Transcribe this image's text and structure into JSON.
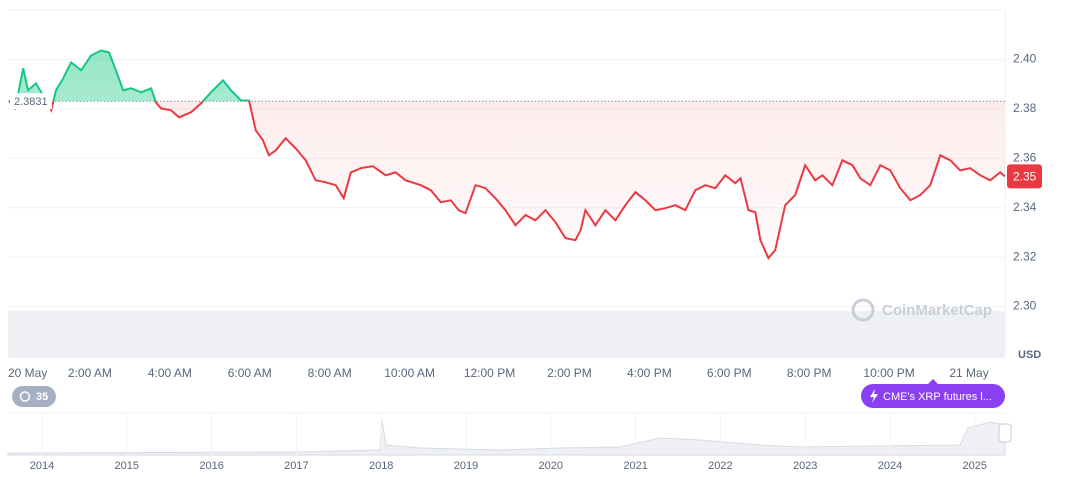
{
  "chart_data": {
    "type": "line",
    "x": [
      -0.03,
      0.13,
      0.33,
      0.45,
      0.65,
      0.78,
      1.03,
      1.15,
      1.33,
      1.53,
      1.78,
      2.03,
      2.28,
      2.48,
      2.65,
      2.83,
      3.03,
      3.28,
      3.53,
      3.65,
      3.78,
      4.03,
      4.23,
      4.53,
      4.78,
      5.03,
      5.33,
      5.53,
      5.78,
      5.98,
      6.15,
      6.33,
      6.48,
      6.65,
      6.9,
      7.15,
      7.4,
      7.65,
      7.9,
      8.15,
      8.35,
      8.53,
      8.78,
      9.08,
      9.4,
      9.65,
      9.9,
      10.28,
      10.53,
      10.78,
      11.03,
      11.23,
      11.4,
      11.65,
      11.9,
      12.15,
      12.4,
      12.65,
      12.9,
      13.15,
      13.4,
      13.65,
      13.9,
      14.15,
      14.28,
      14.4,
      14.65,
      14.9,
      15.15,
      15.4,
      15.65,
      15.9,
      16.15,
      16.4,
      16.65,
      16.9,
      17.15,
      17.4,
      17.65,
      17.9,
      18.15,
      18.28,
      18.48,
      18.65,
      18.78,
      18.98,
      19.15,
      19.4,
      19.65,
      19.9,
      20.15,
      20.33,
      20.58,
      20.83,
      21.08,
      21.28,
      21.53,
      21.78,
      22.03,
      22.28,
      22.53,
      22.78,
      23.03,
      23.28,
      23.53,
      23.78,
      24.03,
      24.28,
      24.53,
      24.78,
      24.9
    ],
    "values": [
      2.3834,
      2.3802,
      2.3964,
      2.3875,
      2.3903,
      2.3867,
      2.3794,
      2.3875,
      2.3923,
      2.3988,
      2.3956,
      2.4016,
      2.4036,
      2.4028,
      2.3956,
      2.3875,
      2.3883,
      2.3867,
      2.3883,
      2.3826,
      2.3802,
      2.3794,
      2.3766,
      2.3786,
      2.3822,
      2.3867,
      2.3915,
      2.3875,
      2.3834,
      2.3834,
      2.3713,
      2.3673,
      2.3612,
      2.3632,
      2.3681,
      2.364,
      2.3592,
      2.3511,
      2.3503,
      2.3491,
      2.3438,
      2.3543,
      2.356,
      2.3568,
      2.3531,
      2.3543,
      2.3511,
      2.3491,
      2.3471,
      2.3422,
      2.343,
      2.339,
      2.3378,
      2.3491,
      2.3479,
      2.3438,
      2.339,
      2.3329,
      2.337,
      2.3349,
      2.339,
      2.3341,
      2.3277,
      2.3269,
      2.3309,
      2.339,
      2.3329,
      2.339,
      2.3349,
      2.341,
      2.3463,
      2.343,
      2.339,
      2.3398,
      2.341,
      2.339,
      2.3471,
      2.3491,
      2.3479,
      2.3531,
      2.3499,
      2.3519,
      2.339,
      2.3382,
      2.3269,
      2.3196,
      2.3228,
      2.341,
      2.3451,
      2.3572,
      2.3511,
      2.3531,
      2.3491,
      2.3592,
      2.3572,
      2.3519,
      2.3491,
      2.3572,
      2.3551,
      2.3479,
      2.343,
      2.3451,
      2.3491,
      2.3612,
      2.3592,
      2.3551,
      2.356,
      2.3531,
      2.3511,
      2.3543,
      2.3527
    ],
    "color_up": "#16c784",
    "color_down": "#ea3943",
    "baseline": 2.3831,
    "xlim": [
      -0.05,
      24.9
    ],
    "xticks": [
      {
        "value": 0,
        "label": "20 May"
      },
      {
        "value": 2,
        "label": "2:00 AM"
      },
      {
        "value": 4,
        "label": "4:00 AM"
      },
      {
        "value": 6,
        "label": "6:00 AM"
      },
      {
        "value": 8,
        "label": "8:00 AM"
      },
      {
        "value": 10,
        "label": "10:00 AM"
      },
      {
        "value": 12,
        "label": "12:00 PM"
      },
      {
        "value": 14,
        "label": "2:00 PM"
      },
      {
        "value": 16,
        "label": "4:00 PM"
      },
      {
        "value": 18,
        "label": "6:00 PM"
      },
      {
        "value": 20,
        "label": "8:00 PM"
      },
      {
        "value": 22,
        "label": "10:00 PM"
      },
      {
        "value": 24,
        "label": "21 May"
      }
    ],
    "ylim": [
      2.28,
      2.42
    ],
    "yticks": [
      {
        "value": 2.3,
        "label": "2.30"
      },
      {
        "value": 2.32,
        "label": "2.32"
      },
      {
        "value": 2.34,
        "label": "2.34"
      },
      {
        "value": 2.36,
        "label": "2.36"
      },
      {
        "value": 2.38,
        "label": "2.38"
      },
      {
        "value": 2.4,
        "label": "2.40"
      }
    ],
    "grid": true,
    "y_axis_label": "USD",
    "current_price_label": "2.35",
    "watermark": "CoinMarketCap",
    "event_count": 35,
    "event_label": "CME's XRP futures l...",
    "navigator_years": [
      2014,
      2015,
      2016,
      2017,
      2018,
      2019,
      2020,
      2021,
      2022,
      2023,
      2024,
      2025
    ]
  }
}
